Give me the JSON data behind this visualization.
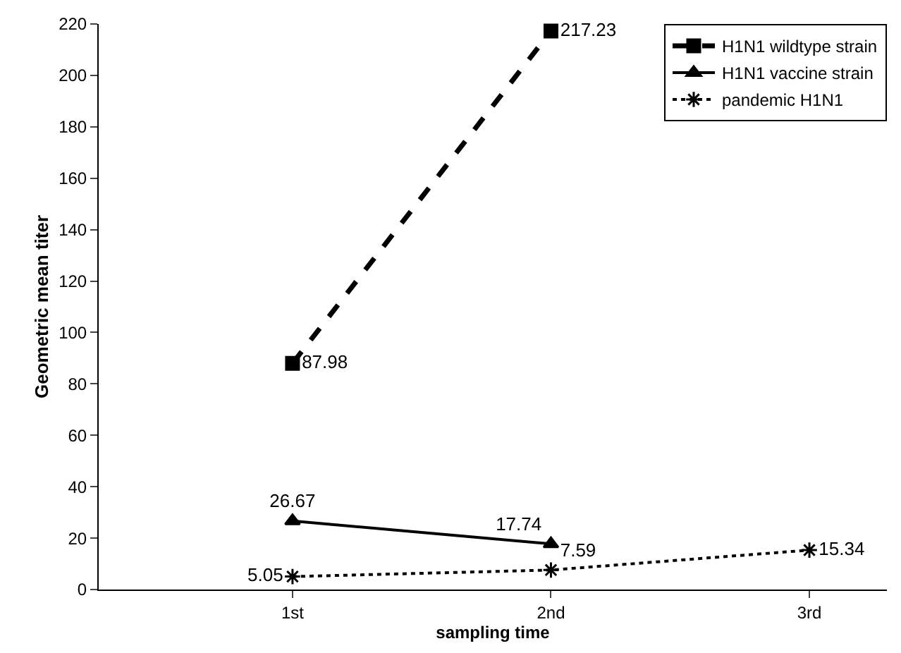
{
  "chart_data": {
    "type": "line",
    "xlabel": "sampling time",
    "ylabel": "Geometric mean titer",
    "categories": [
      "1st",
      "2nd",
      "3rd"
    ],
    "series": [
      {
        "name": "H1N1 wildtype strain",
        "color": "#000000",
        "values": [
          87.98,
          217.23,
          null
        ],
        "marker": "square",
        "line_style": "dashed"
      },
      {
        "name": "H1N1 vaccine strain",
        "color": "#000000",
        "values": [
          26.67,
          17.74,
          null
        ],
        "marker": "triangle",
        "line_style": "solid"
      },
      {
        "name": "pandemic H1N1",
        "color": "#000000",
        "values": [
          5.05,
          7.59,
          15.34
        ],
        "marker": "cross",
        "line_style": "dotted"
      }
    ],
    "ylim": [
      0,
      220
    ],
    "yticks": [
      0,
      20,
      40,
      60,
      80,
      100,
      120,
      140,
      160,
      180,
      200,
      220
    ],
    "grid": false,
    "legend": "top right",
    "data_labels": true
  }
}
